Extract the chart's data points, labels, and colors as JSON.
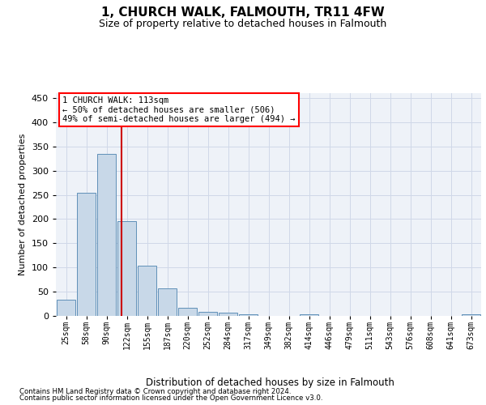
{
  "title": "1, CHURCH WALK, FALMOUTH, TR11 4FW",
  "subtitle": "Size of property relative to detached houses in Falmouth",
  "xlabel": "Distribution of detached houses by size in Falmouth",
  "ylabel": "Number of detached properties",
  "footer_line1": "Contains HM Land Registry data © Crown copyright and database right 2024.",
  "footer_line2": "Contains public sector information licensed under the Open Government Licence v3.0.",
  "annotation_line1": "1 CHURCH WALK: 113sqm",
  "annotation_line2": "← 50% of detached houses are smaller (506)",
  "annotation_line3": "49% of semi-detached houses are larger (494) →",
  "categories": [
    "25sqm",
    "58sqm",
    "90sqm",
    "122sqm",
    "155sqm",
    "187sqm",
    "220sqm",
    "252sqm",
    "284sqm",
    "317sqm",
    "349sqm",
    "382sqm",
    "414sqm",
    "446sqm",
    "479sqm",
    "511sqm",
    "543sqm",
    "576sqm",
    "608sqm",
    "641sqm",
    "673sqm"
  ],
  "values": [
    33,
    255,
    335,
    196,
    103,
    57,
    17,
    9,
    6,
    4,
    0,
    0,
    3,
    0,
    0,
    0,
    0,
    0,
    0,
    0,
    3
  ],
  "bar_color": "#c8d8e8",
  "bar_edge_color": "#6090b8",
  "vline_color": "#cc0000",
  "vline_x_index": 2.72,
  "grid_color": "#d0d8e8",
  "plot_bg_color": "#eef2f8",
  "ylim": [
    0,
    460
  ],
  "yticks": [
    0,
    50,
    100,
    150,
    200,
    250,
    300,
    350,
    400,
    450
  ]
}
